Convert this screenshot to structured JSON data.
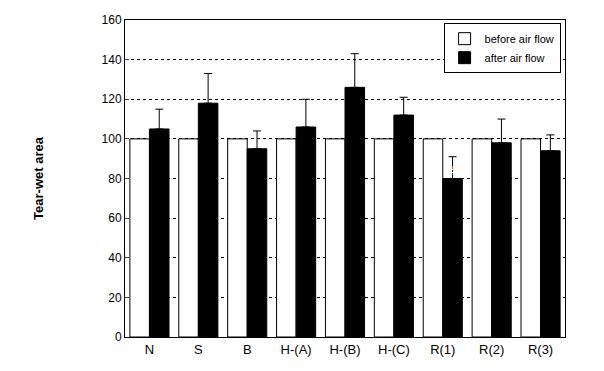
{
  "chart_data": {
    "type": "bar",
    "y_label": "Tear-wet area",
    "categories": [
      "N",
      "S",
      "B",
      "H-(A)",
      "H-(B)",
      "H-(C)",
      "R(1)",
      "R(2)",
      "R(3)"
    ],
    "series": [
      {
        "name": "before air flow",
        "color": "#ffffff",
        "values": [
          100,
          100,
          100,
          100,
          100,
          100,
          100,
          100,
          100
        ]
      },
      {
        "name": "after air flow",
        "color": "#000000",
        "values": [
          105,
          118,
          95,
          106,
          126,
          112,
          80,
          98,
          94
        ],
        "errors": [
          10,
          15,
          9,
          14,
          17,
          9,
          11,
          12,
          8
        ]
      }
    ],
    "annotations": [
      {
        "text": "#",
        "x": "R(1)",
        "y": 84
      }
    ],
    "ylim": [
      0,
      160
    ],
    "yticks": [
      0,
      20,
      40,
      60,
      80,
      100,
      120,
      140,
      160
    ],
    "grid": true,
    "legend": "upper right"
  }
}
